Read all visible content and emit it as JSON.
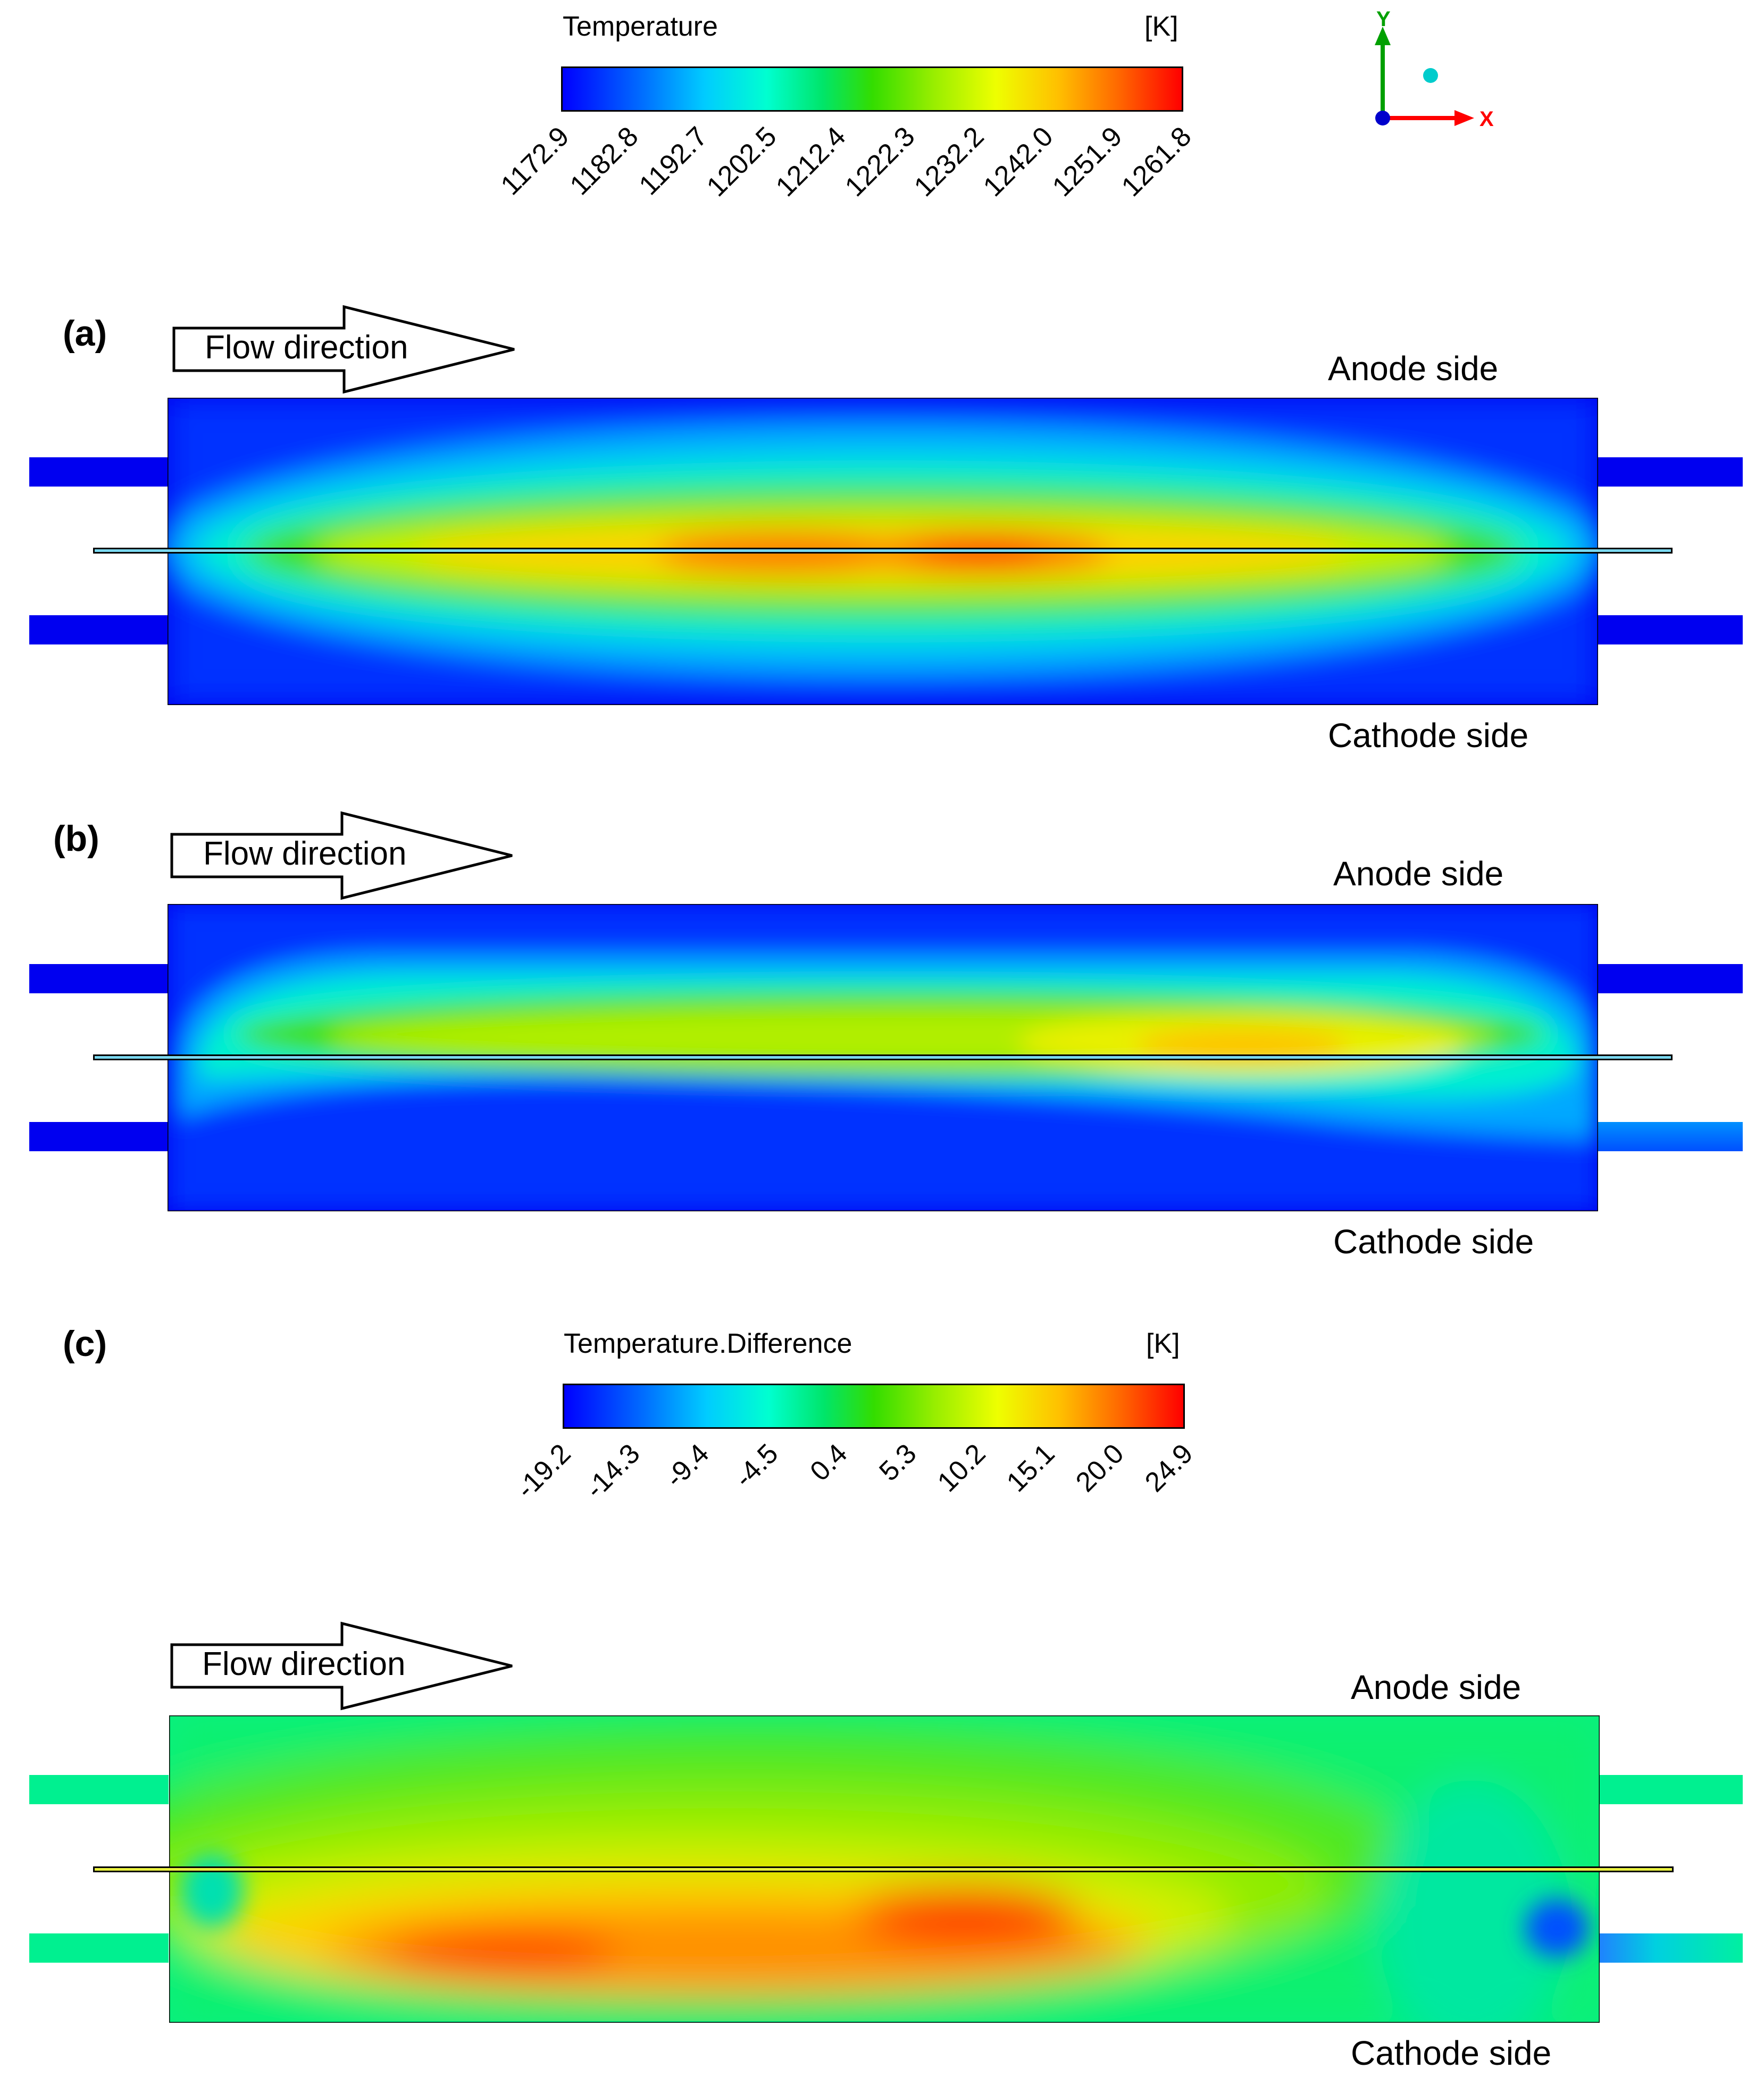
{
  "legend_top": {
    "title": "Temperature",
    "unit": "[K]",
    "ticks": [
      "1172.9",
      "1182.8",
      "1192.7",
      "1202.5",
      "1212.4",
      "1222.3",
      "1232.2",
      "1242.0",
      "1251.9",
      "1261.8"
    ]
  },
  "legend_bottom": {
    "title": "Temperature.Difference",
    "unit": "[K]",
    "ticks": [
      "-19.2",
      "-14.3",
      "-9.4",
      "-4.5",
      "0.4",
      "5.3",
      "10.2",
      "15.1",
      "20.0",
      "24.9"
    ]
  },
  "axes": {
    "y": "Y",
    "x": "X"
  },
  "panels": [
    {
      "label": "(a)",
      "flow": "Flow direction",
      "top_side": "Anode side",
      "bottom_side": "Cathode side"
    },
    {
      "label": "(b)",
      "flow": "Flow direction",
      "top_side": "Anode side",
      "bottom_side": "Cathode side"
    },
    {
      "label": "(c)",
      "flow": "Flow direction",
      "top_side": "Anode side",
      "bottom_side": "Cathode side"
    }
  ],
  "colors": {
    "min": "#0000ff",
    "mid": "#33dd00",
    "max": "#ff0000"
  }
}
